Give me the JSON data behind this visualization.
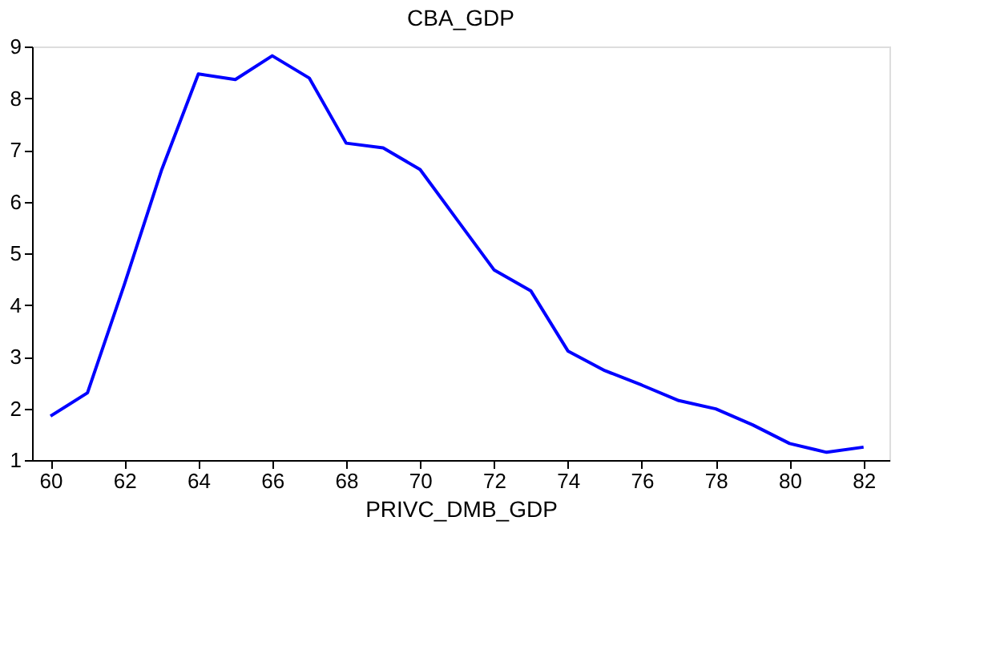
{
  "chart_data": {
    "type": "line",
    "title": "CBA_GDP",
    "xlabel": "PRIVC_DMB_GDP",
    "x": [
      60,
      61,
      62,
      63,
      64,
      65,
      66,
      67,
      68,
      69,
      70,
      71,
      72,
      73,
      74,
      75,
      76,
      77,
      78,
      79,
      80,
      81,
      82
    ],
    "series": [
      {
        "color": "#0000ff",
        "values": [
          1.85,
          2.3,
          4.4,
          6.6,
          8.47,
          8.36,
          8.82,
          8.39,
          7.13,
          7.04,
          6.62,
          5.65,
          4.68,
          4.27,
          3.11,
          2.73,
          2.45,
          2.15,
          1.99,
          1.68,
          1.32,
          1.15,
          1.25
        ]
      }
    ],
    "xlim": [
      59.5,
      82.7
    ],
    "ylim": [
      1,
      9
    ],
    "xticks": [
      60,
      62,
      64,
      66,
      68,
      70,
      72,
      74,
      76,
      78,
      80,
      82
    ],
    "yticks": [
      1,
      2,
      3,
      4,
      5,
      6,
      7,
      8,
      9
    ],
    "grid": false,
    "legend": false,
    "marker": "none",
    "line_style": "solid"
  }
}
